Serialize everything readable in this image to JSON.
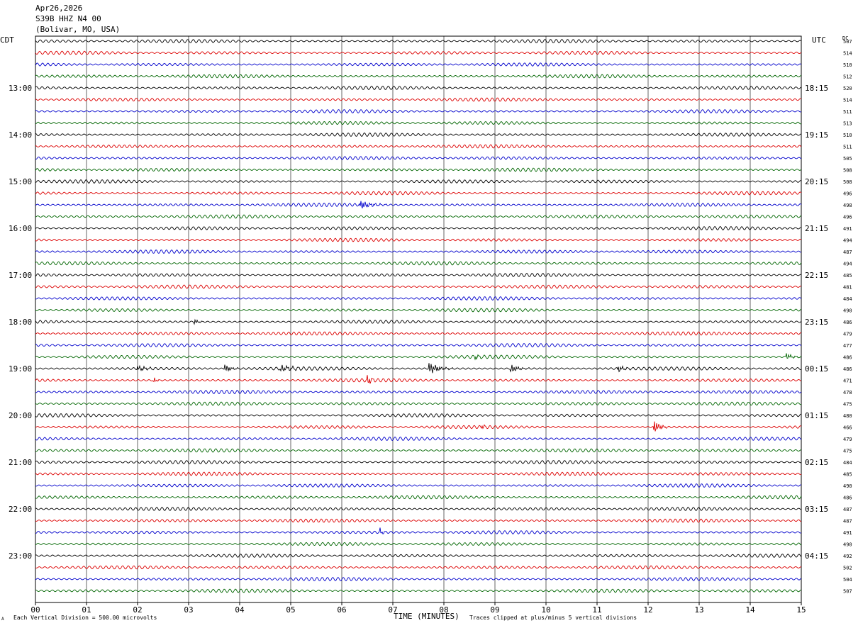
{
  "header": {
    "date": "Apr26,2026",
    "station": "S39B HHZ N4 00",
    "location": "(Bolivar, MO, USA)"
  },
  "labels": {
    "left_tz": "CDT",
    "right_tz": "UTC",
    "dc_label": "DC",
    "xlabel": "TIME (MINUTES)",
    "scale_note": "Each Vertical Division =  500.00 microvolts",
    "clip_note": "Traces clipped at plus/minus 5 vertical divisions",
    "corner_mark": "A"
  },
  "colors": {
    "trace_cycle": [
      "#000000",
      "#dd0000",
      "#0000cc",
      "#006600"
    ],
    "grid": "#000000",
    "background": "#ffffff"
  },
  "chart_data": {
    "type": "line",
    "title": "S39B HHZ N4 00",
    "minutes_per_line": 15,
    "lines_per_hour": 4,
    "x_ticks": [
      "00",
      "01",
      "02",
      "03",
      "04",
      "05",
      "06",
      "07",
      "08",
      "09",
      "10",
      "11",
      "12",
      "13",
      "14",
      "15"
    ],
    "xlim": [
      0,
      15
    ],
    "hour_labels_cdt": [
      {
        "line": 4,
        "label": "13:00"
      },
      {
        "line": 8,
        "label": "14:00"
      },
      {
        "line": 12,
        "label": "15:00"
      },
      {
        "line": 16,
        "label": "16:00"
      },
      {
        "line": 20,
        "label": "17:00"
      },
      {
        "line": 24,
        "label": "18:00"
      },
      {
        "line": 28,
        "label": "19:00"
      },
      {
        "line": 32,
        "label": "20:00"
      },
      {
        "line": 36,
        "label": "21:00"
      },
      {
        "line": 40,
        "label": "22:00"
      },
      {
        "line": 44,
        "label": "23:00"
      }
    ],
    "hour_labels_utc": [
      {
        "line": 4,
        "label": "18:15"
      },
      {
        "line": 8,
        "label": "19:15"
      },
      {
        "line": 12,
        "label": "20:15"
      },
      {
        "line": 16,
        "label": "21:15"
      },
      {
        "line": 20,
        "label": "22:15"
      },
      {
        "line": 24,
        "label": "23:15"
      },
      {
        "line": 28,
        "label": "00:15"
      },
      {
        "line": 32,
        "label": "01:15"
      },
      {
        "line": 36,
        "label": "02:15"
      },
      {
        "line": 40,
        "label": "03:15"
      },
      {
        "line": 44,
        "label": "04:15"
      }
    ],
    "dc_offsets": [
      507,
      514,
      510,
      512,
      520,
      514,
      511,
      513,
      510,
      511,
      505,
      508,
      508,
      496,
      498,
      496,
      491,
      494,
      487,
      494,
      485,
      481,
      484,
      490,
      486,
      479,
      477,
      486,
      486,
      471,
      478,
      475,
      480,
      466,
      479,
      475,
      484,
      485,
      490,
      486,
      487,
      487,
      491,
      490,
      492,
      502,
      504,
      507
    ],
    "events": [
      {
        "line": 14,
        "start": 6.35,
        "end": 6.95,
        "amp": 1.4
      },
      {
        "line": 24,
        "start": 3.1,
        "end": 3.3,
        "amp": 1.1
      },
      {
        "line": 27,
        "start": 8.6,
        "end": 8.8,
        "amp": 0.9
      },
      {
        "line": 27,
        "start": 14.7,
        "end": 15.0,
        "amp": 1.3
      },
      {
        "line": 28,
        "start": 2.0,
        "end": 2.4,
        "amp": 1.0
      },
      {
        "line": 28,
        "start": 3.7,
        "end": 4.0,
        "amp": 1.6
      },
      {
        "line": 28,
        "start": 4.8,
        "end": 5.3,
        "amp": 1.2
      },
      {
        "line": 28,
        "start": 7.7,
        "end": 8.2,
        "amp": 2.2
      },
      {
        "line": 28,
        "start": 9.3,
        "end": 9.7,
        "amp": 1.4
      },
      {
        "line": 28,
        "start": 11.4,
        "end": 11.7,
        "amp": 1.1
      },
      {
        "line": 29,
        "start": 2.3,
        "end": 2.5,
        "amp": 1.0
      },
      {
        "line": 29,
        "start": 6.5,
        "end": 6.7,
        "amp": 1.6
      },
      {
        "line": 33,
        "start": 12.1,
        "end": 12.4,
        "amp": 2.6
      },
      {
        "line": 33,
        "start": 8.75,
        "end": 8.85,
        "amp": 1.0
      },
      {
        "line": 42,
        "start": 6.75,
        "end": 6.9,
        "amp": 1.0
      }
    ]
  }
}
